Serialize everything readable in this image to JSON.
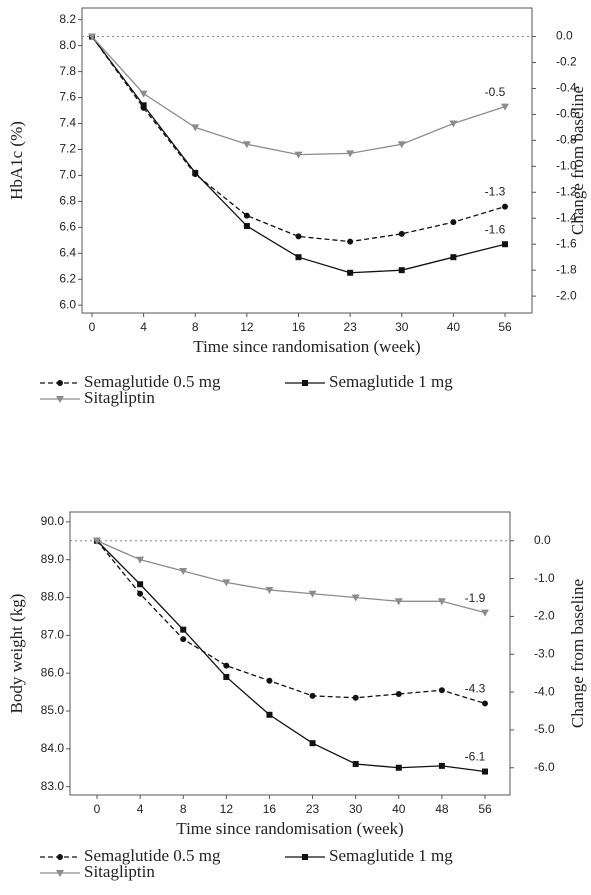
{
  "chart_data": [
    {
      "type": "line",
      "x_label": "Time since randomisation (week)",
      "y_label": "HbA1c (%)",
      "y2_label": "Change from baseline",
      "categories": [
        "0",
        "4",
        "8",
        "12",
        "16",
        "23",
        "30",
        "40",
        "56"
      ],
      "ylim": [
        5.94,
        8.29
      ],
      "yticks": [
        {
          "value": 6,
          "label": "6.0"
        },
        6.2,
        6.4,
        6.6,
        6.8,
        {
          "value": 7,
          "label": "7.0"
        },
        7.2,
        7.4,
        7.6,
        7.8,
        {
          "value": 8,
          "label": "8.0"
        },
        8.2
      ],
      "y2lim": [
        -2.13,
        0.22
      ],
      "y2ticks": [
        {
          "value": 0,
          "label": "0.0"
        },
        -0.2,
        -0.4,
        -0.6,
        -0.8,
        {
          "value": -1,
          "label": "-1.0"
        },
        -1.2,
        -1.4,
        -1.6,
        -1.8,
        {
          "value": -2,
          "label": "-2.0"
        }
      ],
      "baseline_y2": 0,
      "series": [
        {
          "name": "Semaglutide 0.5 mg",
          "color": "#111111",
          "dashed": true,
          "marker": "circle",
          "axis": "y2",
          "values": [
            0,
            -0.55,
            -1.06,
            -1.38,
            -1.54,
            -1.58,
            -1.52,
            -1.43,
            -1.31
          ],
          "value_labels": [
            null,
            null,
            null,
            null,
            null,
            null,
            null,
            null,
            "-1.3"
          ]
        },
        {
          "name": "Semaglutide 1 mg",
          "color": "#111111",
          "dashed": false,
          "marker": "square",
          "axis": "y2",
          "values": [
            0,
            -0.53,
            -1.05,
            -1.46,
            -1.7,
            -1.82,
            -1.8,
            -1.7,
            -1.6
          ],
          "value_labels": [
            null,
            null,
            null,
            null,
            null,
            null,
            null,
            null,
            "-1.6"
          ]
        },
        {
          "name": "Sitagliptin",
          "color": "#8c8c8c",
          "dashed": false,
          "marker": "triangle",
          "axis": "y2",
          "values": [
            0,
            -0.44,
            -0.7,
            -0.83,
            -0.91,
            -0.9,
            -0.83,
            -0.67,
            -0.54
          ],
          "value_labels": [
            null,
            null,
            null,
            null,
            null,
            null,
            null,
            null,
            "-0.5"
          ]
        }
      ]
    },
    {
      "type": "line",
      "x_label": "Time since randomisation (week)",
      "y_label": "Body weight (kg)",
      "y2_label": "Change from baseline",
      "categories": [
        "0",
        "4",
        "8",
        "12",
        "16",
        "23",
        "30",
        "40",
        "48",
        "56"
      ],
      "ylim": [
        82.78,
        90.26
      ],
      "yticks": [
        {
          "value": 83,
          "label": "83.0"
        },
        {
          "value": 84,
          "label": "84.0"
        },
        {
          "value": 85,
          "label": "85.0"
        },
        {
          "value": 86,
          "label": "86.0"
        },
        {
          "value": 87,
          "label": "87.0"
        },
        {
          "value": 88,
          "label": "88.0"
        },
        {
          "value": 89,
          "label": "89.0"
        },
        {
          "value": 90,
          "label": "90.0"
        }
      ],
      "y2lim": [
        -6.72,
        0.76
      ],
      "y2ticks": [
        {
          "value": -6,
          "label": "-6.0"
        },
        {
          "value": -5,
          "label": "-5.0"
        },
        {
          "value": -4,
          "label": "-4.0"
        },
        {
          "value": -3,
          "label": "-3.0"
        },
        {
          "value": -2,
          "label": "-2.0"
        },
        {
          "value": -1,
          "label": "-1.0"
        },
        {
          "value": 0,
          "label": "0.0"
        }
      ],
      "baseline_y2": 0,
      "series": [
        {
          "name": "Semaglutide 0.5 mg",
          "color": "#111111",
          "dashed": true,
          "marker": "circle",
          "axis": "y2",
          "values": [
            0,
            -1.4,
            -2.6,
            -3.3,
            -3.7,
            -4.1,
            -4.15,
            -4.05,
            -3.95,
            -4.3
          ],
          "value_labels": [
            null,
            null,
            null,
            null,
            null,
            null,
            null,
            null,
            null,
            "-4.3"
          ]
        },
        {
          "name": "Semaglutide 1 mg",
          "color": "#111111",
          "dashed": false,
          "marker": "square",
          "axis": "y2",
          "values": [
            0,
            -1.15,
            -2.35,
            -3.6,
            -4.6,
            -5.35,
            -5.9,
            -6,
            -5.95,
            -6.1
          ],
          "value_labels": [
            null,
            null,
            null,
            null,
            null,
            null,
            null,
            null,
            null,
            "-6.1"
          ]
        },
        {
          "name": "Sitagliptin",
          "color": "#8c8c8c",
          "dashed": false,
          "marker": "triangle",
          "axis": "y2",
          "values": [
            0,
            -0.5,
            -0.8,
            -1.1,
            -1.3,
            -1.4,
            -1.5,
            -1.6,
            -1.6,
            -1.9
          ],
          "value_labels": [
            null,
            null,
            null,
            null,
            null,
            null,
            null,
            null,
            null,
            "-1.9"
          ]
        }
      ]
    }
  ]
}
